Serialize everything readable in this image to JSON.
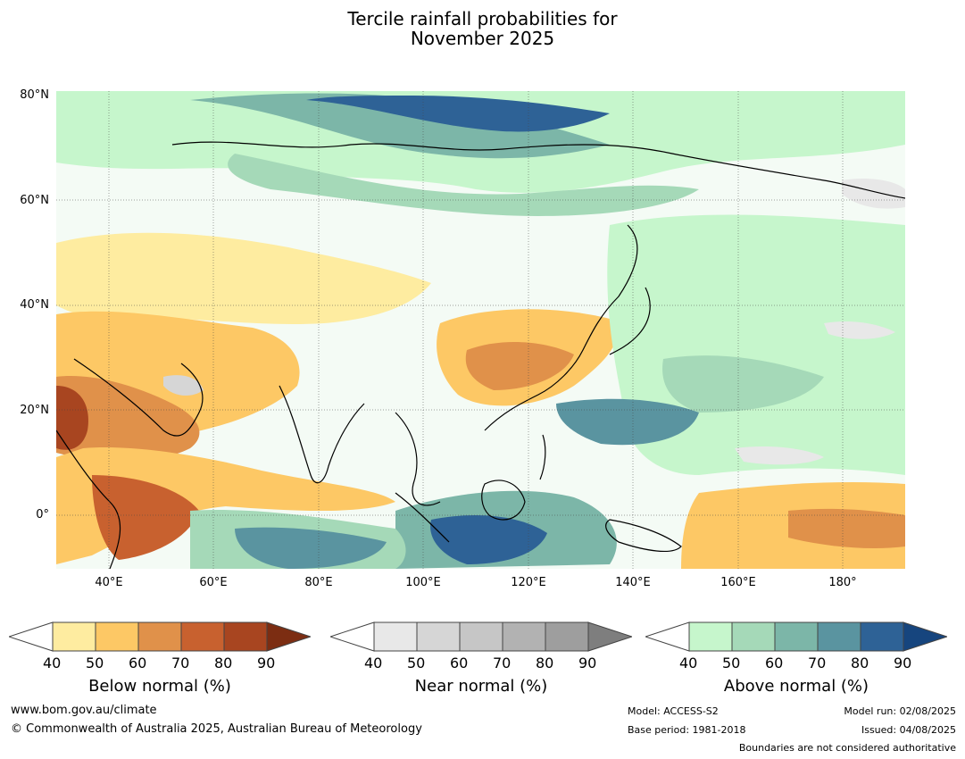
{
  "title_line1": "Tercile rainfall probabilities for",
  "title_line2": "November 2025",
  "lat_labels": [
    "80°N",
    "60°N",
    "40°N",
    "20°N",
    "0°"
  ],
  "lon_labels": [
    "40°E",
    "60°E",
    "80°E",
    "100°E",
    "120°E",
    "140°E",
    "160°E",
    "180°"
  ],
  "legends": [
    {
      "title": "Below normal (%)",
      "ticks": [
        "40",
        "50",
        "60",
        "70",
        "80",
        "90"
      ],
      "colors": [
        "#ffffff",
        "#feeca0",
        "#fdc865",
        "#e0914a",
        "#c8612f",
        "#a84520",
        "#7c2d12"
      ]
    },
    {
      "title": "Near normal (%)",
      "ticks": [
        "40",
        "50",
        "60",
        "70",
        "80",
        "90"
      ],
      "colors": [
        "#ffffff",
        "#e8e8e8",
        "#d6d6d6",
        "#c6c6c6",
        "#b2b2b2",
        "#9e9e9e",
        "#7e7e7e"
      ]
    },
    {
      "title": "Above normal (%)",
      "ticks": [
        "40",
        "50",
        "60",
        "70",
        "80",
        "90"
      ],
      "colors": [
        "#ffffff",
        "#c6f6cc",
        "#a5d9b8",
        "#7cb6a8",
        "#5a94a0",
        "#2e6296",
        "#16457e"
      ]
    }
  ],
  "footer": {
    "website": "www.bom.gov.au/climate",
    "copyright": "© Commonwealth of Australia 2025, Australian Bureau of Meteorology",
    "model": "Model: ACCESS-S2",
    "base_period": "Base period: 1981-2018",
    "model_run": "Model run: 02/08/2025",
    "issued": "Issued: 04/08/2025",
    "boundaries": "Boundaries are not considered authoritative"
  }
}
